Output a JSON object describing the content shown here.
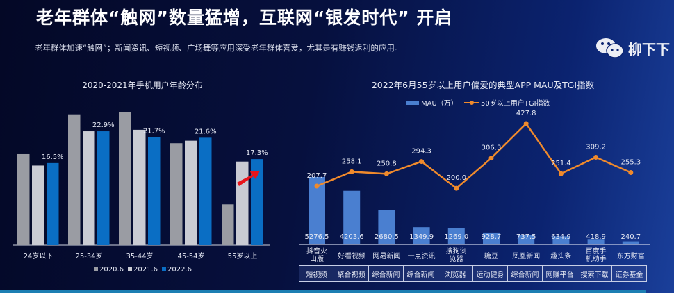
{
  "header": {
    "title": "老年群体“触网”数量猛增，互联网“银发时代” 开启",
    "subtitle": "老年群体加速“触网”；新闻资讯、短视频、广场舞等应用深受老年群体喜爱，尤其是有赚钱返利的应用。"
  },
  "watermark": {
    "text": "柳下下",
    "icon": "wechat-icon"
  },
  "chart_data": [
    {
      "type": "bar",
      "title": "2020-2021年手机用户年龄分布",
      "categories": [
        "24岁以下",
        "25-34岁",
        "35-44岁",
        "45-54岁",
        "55岁以上"
      ],
      "series": [
        {
          "name": "2020.6",
          "values": [
            18.3,
            26.3,
            26.7,
            20.5,
            8.2
          ],
          "color": "#9a9ca3"
        },
        {
          "name": "2021.6",
          "values": [
            16.0,
            22.9,
            23.2,
            21.0,
            16.8
          ],
          "color": "#c9cbd3"
        },
        {
          "name": "2022.6",
          "values": [
            16.5,
            22.9,
            21.7,
            21.6,
            17.3
          ],
          "color": "#0a6ec4"
        }
      ],
      "data_labels": [
        "16.5%",
        "22.9%",
        "21.7%",
        "21.6%",
        "17.3%"
      ],
      "labeled_series": "2022.6",
      "legend_position": "bottom",
      "annotation": "red-arrow-icon",
      "annotation_color": "#e8141b",
      "grid": false
    },
    {
      "type": "bar+line",
      "title": "2022年6月55岁以上用户偏爱的典型APP MAU及TGI指数",
      "categories": [
        "抖音火山版",
        "好看视频",
        "网易新闻",
        "一点资讯",
        "搜狗浏览器",
        "糖豆",
        "凤凰新闻",
        "趣头条",
        "百度手机助手",
        "东方财富"
      ],
      "category_types": [
        "短视频",
        "聚合视频",
        "综合新闻",
        "综合新闻",
        "浏览器",
        "运动健身",
        "综合新闻",
        "网赚平台",
        "搜索下载",
        "证券基金"
      ],
      "series": [
        {
          "name": "MAU（万）",
          "type": "bar",
          "values": [
            5276.5,
            4203.6,
            2680.5,
            1349.9,
            1269.0,
            928.7,
            737.5,
            634.9,
            418.9,
            240.7
          ],
          "labels": [
            "5276.5",
            "4203.6",
            "2680.5",
            "1349.9",
            "1269.0",
            "928.7",
            "737.5",
            "634.9",
            "418.9",
            "240.7"
          ],
          "color": "#4a7fd0"
        },
        {
          "name": "50岁以上用户TGI指数",
          "type": "line",
          "values": [
            207.7,
            258.1,
            250.8,
            294.3,
            200.0,
            306.3,
            427.8,
            251.4,
            309.2,
            255.3
          ],
          "labels": [
            "207.7",
            "258.1",
            "250.8",
            "294.3",
            "200.0",
            "306.3",
            "427.8",
            "251.4",
            "309.2",
            "255.3"
          ],
          "color": "#f08a2c"
        }
      ],
      "legend_position": "top",
      "grid": false
    }
  ]
}
